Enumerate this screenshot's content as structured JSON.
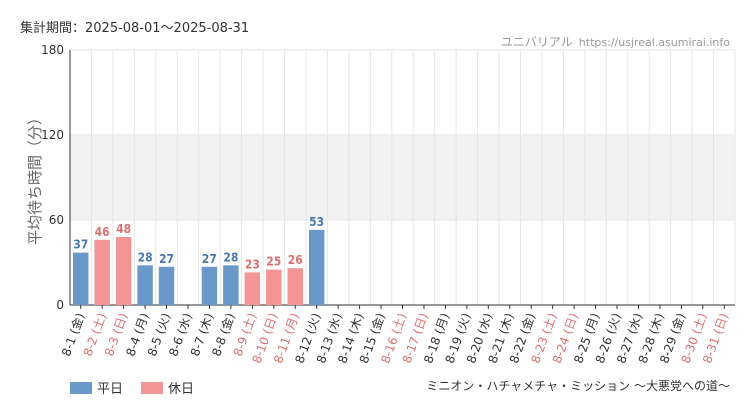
{
  "header": {
    "period": "集計期間：2025-08-01～2025-08-31",
    "credit_name": "ユニバリアル",
    "credit_site": "https://usjreal.asumirai.info"
  },
  "footer": {
    "attraction": "ミニオン・ハチャメチャ・ミッション ～大悪党への道～"
  },
  "colors": {
    "weekday": "#6a99c9",
    "holiday": "#f39595",
    "weekday_text": "#4a79b0",
    "holiday_text": "#e07070",
    "band": "#f2f2f2",
    "grid": "#e6e6e6"
  },
  "chart_data": {
    "type": "bar",
    "ylabel": "平均待ち時間（分）",
    "ylim": [
      0,
      180
    ],
    "yticks": [
      0,
      60,
      120,
      180
    ],
    "bands": [
      [
        60,
        120
      ]
    ],
    "grid": true,
    "legend_position": "bottom-left",
    "categories": [
      "8-1 (金)",
      "8-2 (土)",
      "8-3 (日)",
      "8-4 (月)",
      "8-5 (火)",
      "8-6 (水)",
      "8-7 (木)",
      "8-8 (金)",
      "8-9 (土)",
      "8-10 (日)",
      "8-11 (月)",
      "8-12 (火)",
      "8-13 (水)",
      "8-14 (木)",
      "8-15 (金)",
      "8-16 (土)",
      "8-17 (日)",
      "8-18 (月)",
      "8-19 (火)",
      "8-20 (水)",
      "8-21 (木)",
      "8-22 (金)",
      "8-23 (土)",
      "8-24 (日)",
      "8-25 (月)",
      "8-26 (火)",
      "8-27 (水)",
      "8-28 (木)",
      "8-29 (金)",
      "8-30 (土)",
      "8-31 (日)"
    ],
    "holiday": [
      false,
      true,
      true,
      false,
      false,
      false,
      false,
      false,
      true,
      true,
      true,
      false,
      false,
      false,
      false,
      true,
      true,
      false,
      false,
      false,
      false,
      false,
      true,
      true,
      false,
      false,
      false,
      false,
      false,
      true,
      true
    ],
    "values": [
      37,
      46,
      48,
      28,
      27,
      null,
      27,
      28,
      23,
      25,
      26,
      53,
      null,
      null,
      null,
      null,
      null,
      null,
      null,
      null,
      null,
      null,
      null,
      null,
      null,
      null,
      null,
      null,
      null,
      null,
      null
    ],
    "series": [
      {
        "name": "平日"
      },
      {
        "name": "休日"
      }
    ]
  }
}
